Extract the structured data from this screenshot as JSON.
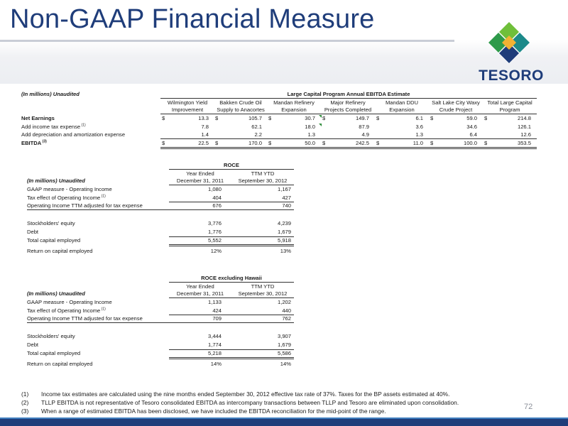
{
  "slide": {
    "title": "Non-GAAP Financial Measure",
    "logo_text": "TESORO",
    "page_number": "72"
  },
  "ebitda_table": {
    "unit_label": "(In millions) Unaudited",
    "group_header": "Large Capital Program Annual EBITDA Estimate",
    "columns": [
      {
        "line1": "Wilmington Yield",
        "line2": "Improvement"
      },
      {
        "line1": "Bakken Crude Oil",
        "line2": "Supply to Anacortes"
      },
      {
        "line1": "Mandan Refinery",
        "line2": "Expansion"
      },
      {
        "line1": "Major Refinery",
        "line2": "Projects Completed"
      },
      {
        "line1": "Mandan DDU",
        "line2": "Expansion"
      },
      {
        "line1": "Salt Lake City Waxy",
        "line2": "Crude Project"
      },
      {
        "line1": "Total Large Capital",
        "line2": "Program"
      }
    ],
    "rows": [
      {
        "label": "Net Earnings",
        "sup": "",
        "bold": true,
        "dollar": true,
        "values": [
          "13.3",
          "105.7",
          "30.7",
          "149.7",
          "6.1",
          "59.0",
          "214.8"
        ]
      },
      {
        "label": "Add income tax expense",
        "sup": "(1)",
        "bold": false,
        "dollar": false,
        "values": [
          "7.8",
          "62.1",
          "18.0",
          "87.9",
          "3.6",
          "34.6",
          "126.1"
        ]
      },
      {
        "label": "Add depreciation and amortization expense",
        "sup": "",
        "bold": false,
        "dollar": false,
        "values": [
          "1.4",
          "2.2",
          "1.3",
          "4.9",
          "1.3",
          "6.4",
          "12.6"
        ]
      },
      {
        "label": "EBITDA",
        "sup": "(3)",
        "bold": true,
        "dollar": true,
        "values": [
          "22.5",
          "170.0",
          "50.0",
          "242.5",
          "11.0",
          "100.0",
          "353.5"
        ]
      }
    ],
    "dollar_sign": "$"
  },
  "roce_table": {
    "title": "ROCE",
    "unit_label": "(In millions) Unaudited",
    "col1_line1": "Year Ended",
    "col1_line2": "December 31, 2011",
    "col2_line1": "TTM YTD",
    "col2_line2": "September 30, 2012",
    "rows": [
      {
        "label": "GAAP measure - Operating Income",
        "sup": "",
        "v1": "1,080",
        "v2": "1,167"
      },
      {
        "label": "Tax effect of Operating Income",
        "sup": "(1)",
        "v1": "404",
        "v2": "427"
      },
      {
        "label": "Operating Income TTM adjusted for tax expense",
        "sup": "",
        "v1": "676",
        "v2": "740"
      },
      {
        "label": "Stockholders' equity",
        "sup": "",
        "v1": "3,776",
        "v2": "4,239"
      },
      {
        "label": "Debt",
        "sup": "",
        "v1": "1,776",
        "v2": "1,679"
      },
      {
        "label": "Total capital employed",
        "sup": "",
        "v1": "5,552",
        "v2": "5,918"
      },
      {
        "label": "Return on capital employed",
        "sup": "",
        "v1": "12%",
        "v2": "13%"
      }
    ]
  },
  "roce_hawaii_table": {
    "title": "ROCE excluding Hawaii",
    "unit_label": "(In millions) Unaudited",
    "col1_line1": "Year Ended",
    "col1_line2": "December 31, 2011",
    "col2_line1": "TTM YTD",
    "col2_line2": "September 30, 2012",
    "rows": [
      {
        "label": "GAAP measure - Operating Income",
        "sup": "",
        "v1": "1,133",
        "v2": "1,202"
      },
      {
        "label": "Tax effect of Operating Income",
        "sup": "(1)",
        "v1": "424",
        "v2": "440"
      },
      {
        "label": "Operating Income TTM adjusted for tax expense",
        "sup": "",
        "v1": "709",
        "v2": "762"
      },
      {
        "label": "Stockholders' equity",
        "sup": "",
        "v1": "3,444",
        "v2": "3,907"
      },
      {
        "label": "Debt",
        "sup": "",
        "v1": "1,774",
        "v2": "1,679"
      },
      {
        "label": "Total capital employed",
        "sup": "",
        "v1": "5,218",
        "v2": "5,586"
      },
      {
        "label": "Return on capital employed",
        "sup": "",
        "v1": "14%",
        "v2": "14%"
      }
    ]
  },
  "footnotes": [
    {
      "num": "(1)",
      "text": "Income tax estimates are calculated using the nine months ended September 30, 2012 effective tax rate of 37%. Taxes for the BP assets estimated at 40%."
    },
    {
      "num": "(2)",
      "text": "TLLP EBITDA is not representative of Tesoro consolidated EBITDA as intercompany transactions between TLLP and Tesoro are eliminated upon consolidation."
    },
    {
      "num": "(3)",
      "text": "When a range of estimated EBITDA has been disclosed, we have included the EBITDA reconciliation for the mid-point of the range."
    }
  ],
  "colors": {
    "title_blue": "#1f3d7a",
    "logo_green": "#2e9a4a",
    "logo_teal": "#1c8a8a",
    "logo_blue": "#1f3d7a",
    "bar_blue": "#1f3d7a"
  }
}
